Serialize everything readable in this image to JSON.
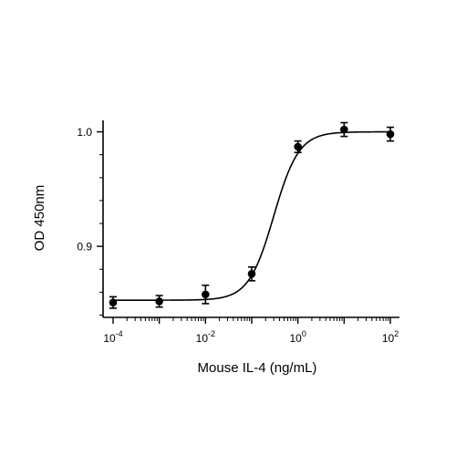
{
  "chart_data": {
    "type": "scatter",
    "title": "",
    "xlabel": "Mouse IL-4 (ng/mL)",
    "ylabel": "OD 450nm",
    "x_scale": "log10",
    "xlim": [
      0.0001,
      100
    ],
    "ylim": [
      0.838,
      1.01
    ],
    "x_ticks": [
      {
        "value": 0.0001,
        "base": "10",
        "exp": "-4"
      },
      {
        "value": 0.01,
        "base": "10",
        "exp": "-2"
      },
      {
        "value": 1,
        "base": "10",
        "exp": "0"
      },
      {
        "value": 100,
        "base": "10",
        "exp": "2"
      }
    ],
    "y_ticks": [
      {
        "value": 0.9,
        "label": "0.9"
      },
      {
        "value": 1.0,
        "label": "1.0"
      }
    ],
    "points": [
      {
        "x": 0.0001,
        "y": 0.851,
        "err": 0.005
      },
      {
        "x": 0.001,
        "y": 0.852,
        "err": 0.005
      },
      {
        "x": 0.01,
        "y": 0.858,
        "err": 0.008
      },
      {
        "x": 0.1,
        "y": 0.876,
        "err": 0.006
      },
      {
        "x": 1,
        "y": 0.987,
        "err": 0.005
      },
      {
        "x": 10,
        "y": 1.002,
        "err": 0.006
      },
      {
        "x": 100,
        "y": 0.998,
        "err": 0.006
      }
    ],
    "fit_curve": {
      "type": "4PL",
      "bottom": 0.853,
      "top": 1.0,
      "ec50": 0.3,
      "hill": 1.6
    },
    "grid": false,
    "legend": "none",
    "marker_color": "#000000"
  }
}
